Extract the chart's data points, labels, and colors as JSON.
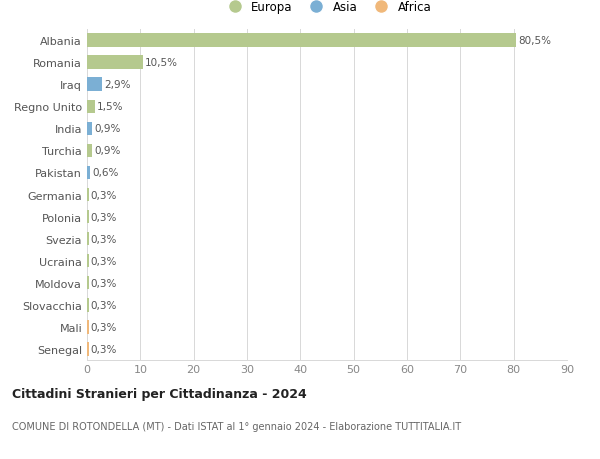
{
  "countries": [
    "Albania",
    "Romania",
    "Iraq",
    "Regno Unito",
    "India",
    "Turchia",
    "Pakistan",
    "Germania",
    "Polonia",
    "Svezia",
    "Ucraina",
    "Moldova",
    "Slovacchia",
    "Mali",
    "Senegal"
  ],
  "values": [
    80.5,
    10.5,
    2.9,
    1.5,
    0.9,
    0.9,
    0.6,
    0.3,
    0.3,
    0.3,
    0.3,
    0.3,
    0.3,
    0.3,
    0.3
  ],
  "labels": [
    "80,5%",
    "10,5%",
    "2,9%",
    "1,5%",
    "0,9%",
    "0,9%",
    "0,6%",
    "0,3%",
    "0,3%",
    "0,3%",
    "0,3%",
    "0,3%",
    "0,3%",
    "0,3%",
    "0,3%"
  ],
  "continent": [
    "Europa",
    "Europa",
    "Asia",
    "Europa",
    "Asia",
    "Europa",
    "Asia",
    "Europa",
    "Europa",
    "Europa",
    "Europa",
    "Europa",
    "Europa",
    "Africa",
    "Africa"
  ],
  "colors": {
    "Europa": "#b5c98e",
    "Asia": "#7bafd4",
    "Africa": "#f0b87a"
  },
  "legend": [
    "Europa",
    "Asia",
    "Africa"
  ],
  "legend_colors": [
    "#b5c98e",
    "#7bafd4",
    "#f0b87a"
  ],
  "title": "Cittadini Stranieri per Cittadinanza - 2024",
  "subtitle": "COMUNE DI ROTONDELLA (MT) - Dati ISTAT al 1° gennaio 2024 - Elaborazione TUTTITALIA.IT",
  "xlim": [
    0,
    90
  ],
  "xticks": [
    0,
    10,
    20,
    30,
    40,
    50,
    60,
    70,
    80,
    90
  ],
  "background_color": "#ffffff",
  "grid_color": "#d8d8d8"
}
